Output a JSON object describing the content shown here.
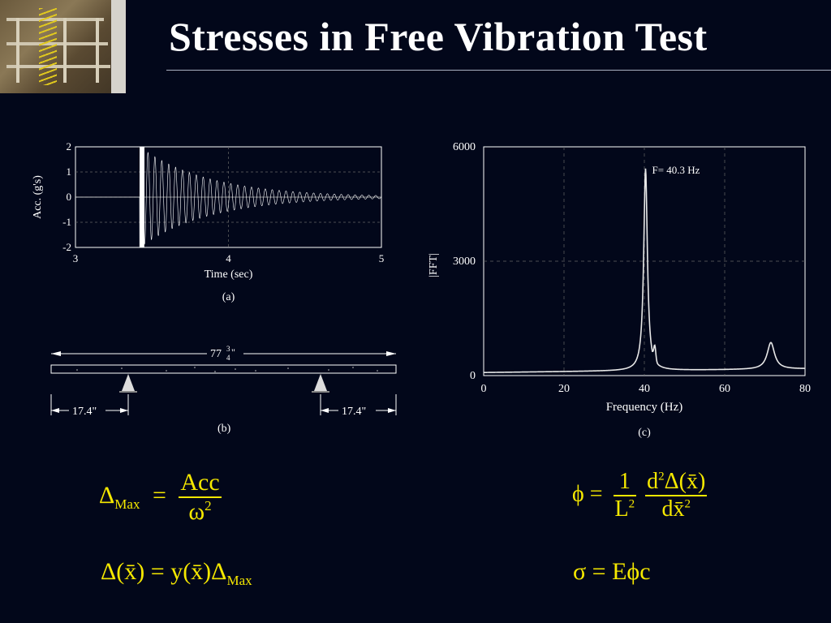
{
  "title": "Stresses in Free Vibration Test",
  "chart_data": [
    {
      "type": "line",
      "panel_label": "(a)",
      "xlabel": "Time (sec)",
      "ylabel": "Acc. (g's)",
      "xlim": [
        3,
        5
      ],
      "ylim": [
        -2,
        2
      ],
      "xticks": [
        "3",
        "4",
        "5"
      ],
      "yticks": [
        "2",
        "1",
        "0",
        "-1",
        "-2"
      ],
      "signal": {
        "start_time": 3.42,
        "initial_amplitude": 2.0,
        "decay_rate": 2.2,
        "frequency_hz": 40.3
      },
      "grid": true
    },
    {
      "type": "line",
      "panel_label": "(c)",
      "xlabel": "Frequency (Hz)",
      "ylabel": "|FFT|",
      "xlim": [
        0,
        80
      ],
      "ylim": [
        0,
        6000
      ],
      "xticks": [
        "0",
        "20",
        "40",
        "60",
        "80"
      ],
      "yticks": [
        "6000",
        "3000",
        "0"
      ],
      "annotation": "F= 40.3 Hz",
      "peaks": [
        {
          "frequency": 40.3,
          "amplitude": 5300
        },
        {
          "frequency": 71.5,
          "amplitude": 700
        }
      ],
      "baseline": 80,
      "grid": true
    }
  ],
  "beam_diagram": {
    "panel_label": "(b)",
    "total_length_label": "77",
    "total_length_fraction_num": "3",
    "total_length_fraction_den": "4",
    "total_length_unit": "\"",
    "left_overhang_label": "17.4\"",
    "right_overhang_label": "17.4\""
  },
  "equations": {
    "delta_max": {
      "lhs": "Δ",
      "lhs_sub": "Max",
      "op": "=",
      "num": "Acc",
      "den": "ω",
      "den_sup": "2"
    },
    "delta_x": {
      "text1": "Δ(x̄) = y(x̄)Δ",
      "sub": "Max"
    },
    "phi": {
      "lhs": "ϕ =",
      "num1": "1",
      "den1": "L",
      "den1_sup": "2",
      "num2_pre": "d",
      "num2_sup": "2",
      "num2_post": "Δ(x̄)",
      "den2": "dx̄",
      "den2_sup": "2"
    },
    "sigma": {
      "text": "σ = Eϕc"
    }
  },
  "colors": {
    "background": "#02071a",
    "equation": "#f5e800",
    "plot": "#ffffff"
  }
}
